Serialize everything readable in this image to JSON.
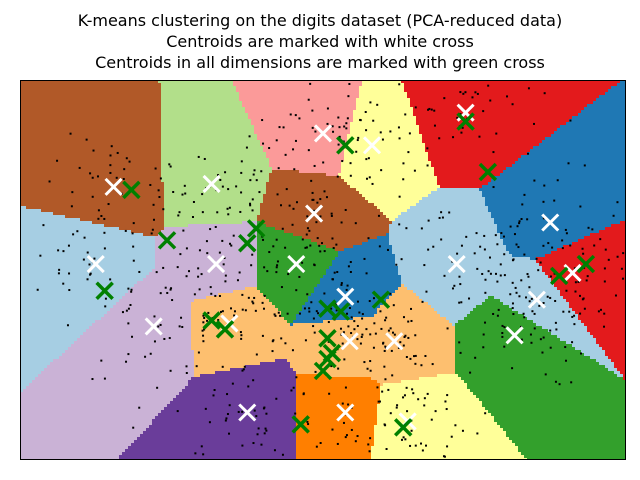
{
  "chart_data": {
    "type": "scatter",
    "title": [
      "K-means clustering on the digits dataset (PCA-reduced data)",
      "Centroids are marked with white cross",
      "Centroids in all dimensions are marked with green cross"
    ],
    "xlabel": "",
    "ylabel": "",
    "xlim": [
      -33,
      35
    ],
    "ylim": [
      -32,
      32
    ],
    "ticks_visible": false,
    "grid": false,
    "cmap": [
      "#a6cee3",
      "#1f78b4",
      "#b2df8a",
      "#33a02c",
      "#fb9a99",
      "#e31a1c",
      "#fdbf6f",
      "#ff7f00",
      "#cab2d6",
      "#6a3d9a",
      "#ffff99",
      "#b15928"
    ],
    "white_centroids": [
      [
        1.0,
        23.0
      ],
      [
        6.5,
        21.0
      ],
      [
        -22.5,
        14.0
      ],
      [
        -11.5,
        14.5
      ],
      [
        0.0,
        9.5
      ],
      [
        17.0,
        26.5
      ],
      [
        26.5,
        8.0
      ],
      [
        -11.0,
        1.0
      ],
      [
        -2.0,
        1.0
      ],
      [
        25.0,
        -5.0
      ],
      [
        16.0,
        1.0
      ],
      [
        -24.5,
        1.0
      ],
      [
        3.5,
        -4.5
      ],
      [
        -18.0,
        -9.5
      ],
      [
        -9.5,
        -9.0
      ],
      [
        4.0,
        -12.0
      ],
      [
        9.0,
        -12.0
      ],
      [
        -7.5,
        -24.0
      ],
      [
        3.5,
        -24.0
      ],
      [
        10.5,
        -25.5
      ],
      [
        22.5,
        -11.0
      ],
      [
        29.0,
        -0.5
      ]
    ],
    "green_centroids": [
      [
        3.5,
        21.0
      ],
      [
        -20.5,
        13.5
      ],
      [
        -16.5,
        5.0
      ],
      [
        -23.5,
        -3.5
      ],
      [
        -6.5,
        7.0
      ],
      [
        -7.5,
        4.5
      ],
      [
        17.0,
        25.0
      ],
      [
        19.5,
        16.5
      ],
      [
        30.5,
        1.0
      ],
      [
        27.5,
        -1.0
      ],
      [
        7.5,
        -5.0
      ],
      [
        1.5,
        -6.5
      ],
      [
        3.0,
        -7.0
      ],
      [
        -11.5,
        -8.5
      ],
      [
        -10.0,
        -10.0
      ],
      [
        1.5,
        -11.5
      ],
      [
        2.0,
        -14.0
      ],
      [
        1.0,
        -17.0
      ],
      [
        -1.5,
        -26.0
      ],
      [
        10.0,
        -26.5
      ],
      [
        1.5,
        -15.0
      ]
    ],
    "green_color": "#008000",
    "white_color": "#ffffff",
    "point_color": "#000000"
  }
}
